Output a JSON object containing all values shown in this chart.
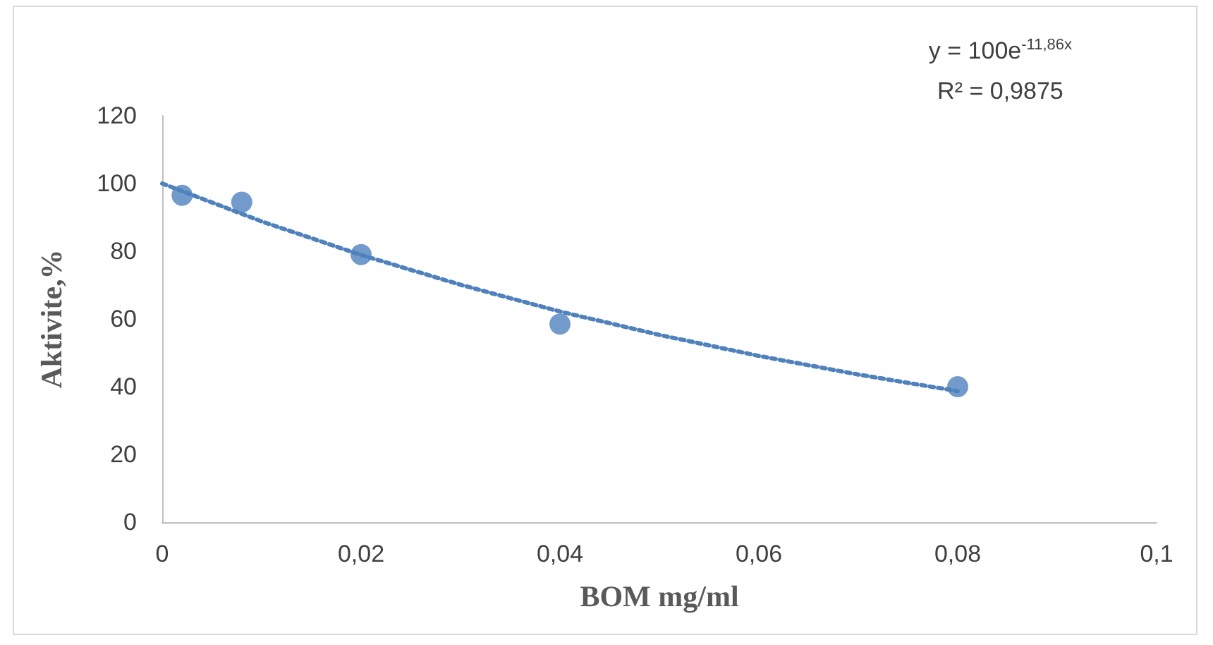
{
  "chart_data": {
    "type": "scatter",
    "xlabel": "BOM mg/ml",
    "ylabel": "Aktivite,%",
    "annotations": [
      "y = 100e$^{-11,86x}$",
      "R² = 0,9875"
    ],
    "series": [
      {
        "color": "#4f81bd",
        "marker": "circle",
        "x": [
          0.002,
          0.008,
          0.02,
          0.04,
          0.08
        ],
        "values": [
          96.5,
          94.5,
          79,
          58.5,
          40
        ]
      },
      {
        "type": "line",
        "color": "#4f81bd",
        "marker": "none",
        "line_style": "dotted",
        "x": [
          0,
          0.01,
          0.02,
          0.03,
          0.04,
          0.05,
          0.06,
          0.07,
          0.08
        ],
        "values": [
          100,
          88.8,
          78.9,
          70.1,
          62.2,
          55.3,
          49.1,
          43.6,
          38.7
        ]
      }
    ],
    "xlim": [
      0,
      0.1
    ],
    "xticks": [
      0,
      {
        "value": 0.02,
        "label": "0,02"
      },
      {
        "value": 0.04,
        "label": "0,04"
      },
      {
        "value": 0.06,
        "label": "0,06"
      },
      {
        "value": 0.08,
        "label": "0,08"
      },
      {
        "value": 0.1,
        "label": "0,1"
      }
    ],
    "ylim": [
      0,
      120
    ],
    "yticks": [
      0,
      20,
      40,
      60,
      80,
      100,
      120
    ],
    "grid": false
  }
}
